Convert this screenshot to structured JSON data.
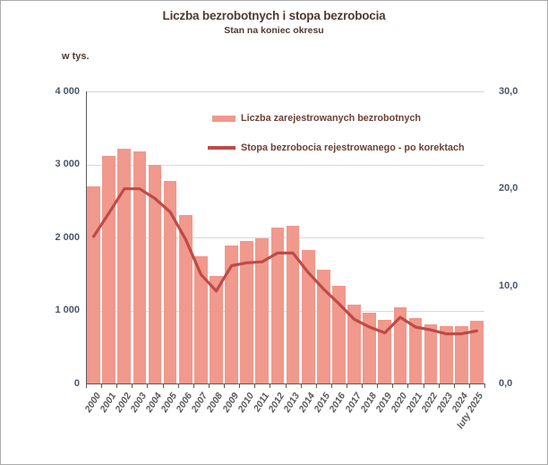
{
  "header": {
    "title": "Liczba bezrobotnych i stopa bezrobocia",
    "subtitle": "Stan na koniec okresu"
  },
  "colors": {
    "bar": "#F0998C",
    "line": "#BE4B48",
    "title": "#4F3A32",
    "legend_text": "#6B4036",
    "axis_text": "#4A5568",
    "year_text": "#595959",
    "gridline": "#D9D9D9",
    "axis_line": "#595959",
    "frame": "#ABABAB"
  },
  "chart_data": {
    "type": "combo-bar-line",
    "title": "Liczba bezrobotnych i stopa bezrobocia",
    "subtitle": "Stan na koniec okresu",
    "grid": "horizontal-only",
    "legend_position": "inside-top-center",
    "categories": [
      "2000",
      "2001",
      "2002",
      "2003",
      "2004",
      "2005",
      "2006",
      "2007",
      "2008",
      "2009",
      "2010",
      "2011",
      "2012",
      "2013",
      "2014",
      "2015",
      "2016",
      "2017",
      "2018",
      "2019",
      "2020",
      "2021",
      "2022",
      "2023",
      "2024",
      "luty 2025"
    ],
    "series": [
      {
        "name": "Liczba zarejestrowanych bezrobotnych",
        "type": "bar",
        "axis": "left",
        "unit": "tys.",
        "values": [
          2702.6,
          3115.1,
          3217.0,
          3175.7,
          2999.6,
          2773.0,
          2309.4,
          1746.6,
          1473.8,
          1892.7,
          1954.7,
          1982.7,
          2136.8,
          2157.9,
          1825.2,
          1563.3,
          1335.2,
          1081.7,
          968.9,
          866.4,
          1046.4,
          895.2,
          812.3,
          788.2,
          786.7,
          853.9
        ]
      },
      {
        "name": "Stopa bezrobocia rejestrowanego - po korektach",
        "type": "line",
        "axis": "right",
        "unit": "%",
        "values": [
          15.1,
          17.5,
          20.0,
          20.0,
          19.0,
          17.6,
          14.8,
          11.2,
          9.5,
          12.1,
          12.4,
          12.5,
          13.4,
          13.4,
          11.4,
          9.7,
          8.2,
          6.6,
          5.8,
          5.2,
          6.8,
          5.8,
          5.5,
          5.1,
          5.1,
          5.4
        ]
      }
    ],
    "left_axis": {
      "unit_label": "w tys.",
      "min": 0,
      "max": 4000,
      "tick_values": [
        4000,
        3000,
        2000,
        1000,
        0
      ],
      "tick_labels": [
        "4 000",
        "3 000",
        "2 000",
        "1 000",
        "0"
      ]
    },
    "right_axis": {
      "min": 0,
      "max": 30,
      "tick_values": [
        30,
        20,
        10,
        0
      ],
      "tick_labels": [
        "30,0",
        "20,0",
        "10,0",
        "0,0"
      ]
    }
  }
}
